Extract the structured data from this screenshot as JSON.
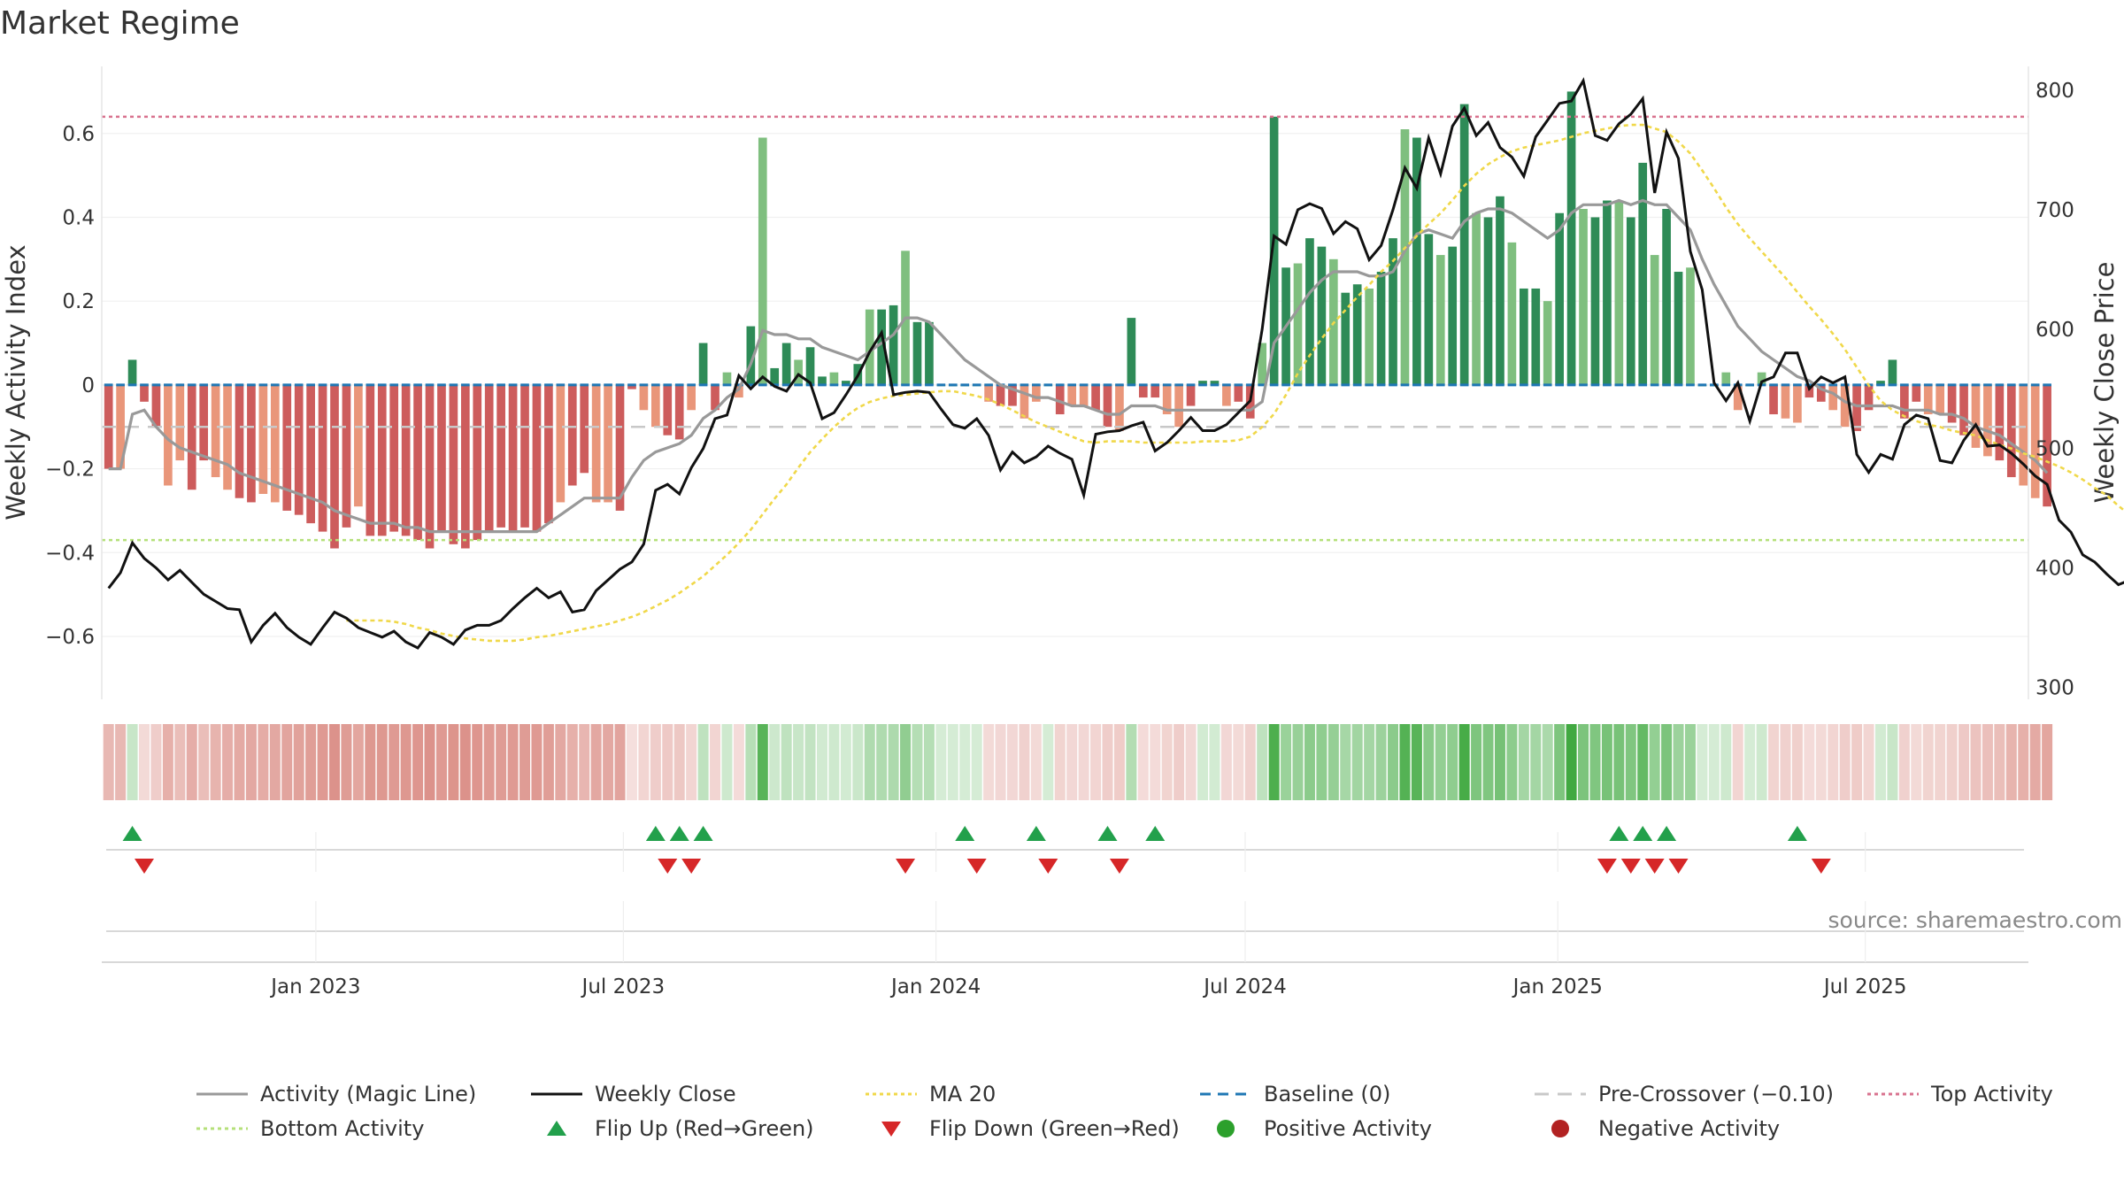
{
  "chart_data": {
    "type": "bar",
    "title": "Market Regime",
    "ylabel_left": "Weekly Activity Index",
    "ylabel_right": "Weekly Close Price",
    "left_axis": {
      "ylim": [
        -0.75,
        0.76
      ],
      "ticks": [
        0.6,
        0.4,
        0.2,
        0,
        -0.2,
        -0.4,
        -0.6
      ],
      "tick_labels": [
        "0.6",
        "0.4",
        "0.2",
        "0",
        "−0.2",
        "−0.4",
        "−0.6"
      ]
    },
    "right_axis": {
      "ylim": [
        290,
        820
      ],
      "ticks": [
        800,
        700,
        600,
        500,
        400,
        300
      ],
      "tick_labels": [
        "800",
        "700",
        "600",
        "500",
        "400",
        "300"
      ]
    },
    "x_range": [
      "2022-08-28",
      "2025-10-05"
    ],
    "x_ticks": [
      {
        "date": "2023-01-01",
        "label": "Jan 2023"
      },
      {
        "date": "2023-07-01",
        "label": "Jul 2023"
      },
      {
        "date": "2024-01-01",
        "label": "Jan 2024"
      },
      {
        "date": "2024-07-01",
        "label": "Jul 2024"
      },
      {
        "date": "2025-01-01",
        "label": "Jan 2025"
      },
      {
        "date": "2025-07-01",
        "label": "Jul 2025"
      }
    ],
    "start_week": "2022-09-01",
    "activity": [
      -0.2,
      -0.2,
      0.06,
      -0.04,
      -0.1,
      -0.24,
      -0.18,
      -0.25,
      -0.18,
      -0.22,
      -0.25,
      -0.27,
      -0.28,
      -0.26,
      -0.28,
      -0.3,
      -0.31,
      -0.33,
      -0.35,
      -0.39,
      -0.34,
      -0.29,
      -0.36,
      -0.36,
      -0.35,
      -0.36,
      -0.37,
      -0.39,
      -0.35,
      -0.38,
      -0.39,
      -0.37,
      -0.35,
      -0.34,
      -0.35,
      -0.34,
      -0.35,
      -0.33,
      -0.28,
      -0.24,
      -0.21,
      -0.28,
      -0.28,
      -0.3,
      -0.01,
      -0.06,
      -0.1,
      -0.12,
      -0.13,
      -0.06,
      0.1,
      -0.06,
      0.03,
      -0.03,
      0.14,
      0.59,
      0.04,
      0.1,
      0.06,
      0.09,
      0.02,
      0.03,
      0.01,
      0.05,
      0.18,
      0.18,
      0.19,
      0.32,
      0.15,
      0.15,
      0.0,
      0.0,
      0.0,
      0.0,
      -0.04,
      -0.05,
      -0.05,
      -0.08,
      -0.04,
      0.0,
      -0.07,
      -0.05,
      -0.05,
      -0.06,
      -0.1,
      -0.11,
      0.16,
      -0.03,
      -0.03,
      -0.07,
      -0.1,
      -0.05,
      0.01,
      0.01,
      -0.05,
      -0.04,
      -0.08,
      0.1,
      0.64,
      0.28,
      0.29,
      0.35,
      0.33,
      0.3,
      0.22,
      0.24,
      0.23,
      0.27,
      0.35,
      0.61,
      0.59,
      0.36,
      0.31,
      0.33,
      0.67,
      0.41,
      0.4,
      0.45,
      0.34,
      0.23,
      0.23,
      0.2,
      0.41,
      0.7,
      0.42,
      0.4,
      0.44,
      0.44,
      0.4,
      0.53,
      0.31,
      0.42,
      0.27,
      0.28,
      0.0,
      0.0,
      0.03,
      -0.06,
      0.0,
      0.03,
      -0.07,
      -0.08,
      -0.09,
      -0.03,
      -0.04,
      -0.06,
      -0.1,
      -0.11,
      -0.06,
      0.01,
      0.06,
      -0.08,
      -0.04,
      -0.07,
      -0.07,
      -0.09,
      -0.12,
      -0.15,
      -0.17,
      -0.18,
      -0.22,
      -0.24,
      -0.27,
      -0.29
    ],
    "close": [
      383,
      396,
      421,
      408,
      400,
      390,
      398,
      388,
      378,
      372,
      366,
      365,
      338,
      352,
      362,
      350,
      342,
      336,
      350,
      363,
      358,
      350,
      346,
      342,
      347,
      338,
      333,
      346,
      342,
      336,
      348,
      352,
      352,
      356,
      366,
      375,
      383,
      375,
      380,
      363,
      365,
      381,
      390,
      399,
      405,
      420,
      465,
      470,
      462,
      484,
      500,
      525,
      528,
      561,
      550,
      560,
      552,
      548,
      562,
      555,
      525,
      530,
      545,
      561,
      581,
      597,
      545,
      547,
      548,
      547,
      533,
      520,
      517,
      525,
      511,
      482,
      497,
      488,
      493,
      502,
      496,
      491,
      461,
      512,
      514,
      515,
      519,
      522,
      498,
      505,
      515,
      526,
      515,
      515,
      520,
      530,
      540,
      600,
      678,
      671,
      700,
      705,
      701,
      680,
      690,
      684,
      658,
      670,
      700,
      735,
      718,
      760,
      730,
      770,
      785,
      762,
      773,
      752,
      744,
      728,
      761,
      775,
      789,
      791,
      808,
      762,
      758,
      772,
      780,
      793,
      714,
      765,
      743,
      665,
      633,
      555,
      540,
      555,
      523,
      556,
      560,
      580,
      580,
      550,
      560,
      555,
      560,
      495,
      480,
      495,
      491,
      520,
      528,
      525,
      490,
      488,
      507,
      520,
      502,
      503,
      496,
      487,
      477,
      470,
      440,
      430,
      411,
      405,
      395,
      386,
      390,
      386
    ],
    "magic_line": [
      -0.2,
      -0.2,
      -0.07,
      -0.06,
      -0.1,
      -0.13,
      -0.15,
      -0.16,
      -0.17,
      -0.18,
      -0.19,
      -0.21,
      -0.22,
      -0.23,
      -0.24,
      -0.25,
      -0.26,
      -0.27,
      -0.28,
      -0.3,
      -0.31,
      -0.32,
      -0.33,
      -0.33,
      -0.33,
      -0.34,
      -0.34,
      -0.35,
      -0.35,
      -0.35,
      -0.35,
      -0.35,
      -0.35,
      -0.35,
      -0.35,
      -0.35,
      -0.35,
      -0.33,
      -0.31,
      -0.29,
      -0.27,
      -0.27,
      -0.27,
      -0.27,
      -0.22,
      -0.18,
      -0.16,
      -0.15,
      -0.14,
      -0.12,
      -0.08,
      -0.06,
      -0.03,
      -0.01,
      0.05,
      0.13,
      0.12,
      0.12,
      0.11,
      0.11,
      0.09,
      0.08,
      0.07,
      0.06,
      0.08,
      0.1,
      0.12,
      0.16,
      0.16,
      0.15,
      0.12,
      0.09,
      0.06,
      0.04,
      0.02,
      0.0,
      -0.01,
      -0.02,
      -0.03,
      -0.03,
      -0.04,
      -0.05,
      -0.05,
      -0.06,
      -0.07,
      -0.07,
      -0.05,
      -0.05,
      -0.05,
      -0.06,
      -0.06,
      -0.06,
      -0.06,
      -0.06,
      -0.06,
      -0.06,
      -0.06,
      -0.04,
      0.1,
      0.14,
      0.18,
      0.22,
      0.25,
      0.27,
      0.27,
      0.27,
      0.26,
      0.26,
      0.27,
      0.32,
      0.36,
      0.37,
      0.36,
      0.35,
      0.39,
      0.41,
      0.42,
      0.42,
      0.41,
      0.39,
      0.37,
      0.35,
      0.37,
      0.41,
      0.43,
      0.43,
      0.43,
      0.44,
      0.43,
      0.44,
      0.43,
      0.43,
      0.4,
      0.37,
      0.3,
      0.24,
      0.19,
      0.14,
      0.11,
      0.08,
      0.06,
      0.04,
      0.02,
      0.01,
      -0.01,
      -0.02,
      -0.04,
      -0.05,
      -0.05,
      -0.05,
      -0.05,
      -0.06,
      -0.06,
      -0.06,
      -0.07,
      -0.07,
      -0.08,
      -0.1,
      -0.11,
      -0.12,
      -0.14,
      -0.16,
      -0.18,
      -0.21
    ],
    "ma20": [
      null,
      null,
      null,
      null,
      null,
      null,
      null,
      null,
      null,
      null,
      null,
      null,
      null,
      null,
      null,
      null,
      null,
      null,
      null,
      null,
      356,
      356,
      356,
      356,
      355,
      353,
      350,
      348,
      345,
      343,
      341,
      340,
      339,
      339,
      339,
      340,
      342,
      343,
      345,
      347,
      349,
      351,
      353,
      356,
      359,
      363,
      368,
      373,
      379,
      386,
      393,
      402,
      411,
      421,
      432,
      445,
      458,
      470,
      484,
      497,
      508,
      518,
      527,
      534,
      539,
      542,
      544,
      545,
      546,
      547,
      548,
      548,
      546,
      544,
      541,
      537,
      532,
      527,
      522,
      518,
      514,
      510,
      506,
      505,
      506,
      506,
      506,
      505,
      505,
      505,
      505,
      505,
      506,
      506,
      506,
      507,
      510,
      518,
      529,
      545,
      563,
      578,
      592,
      605,
      616,
      627,
      637,
      648,
      657,
      668,
      678,
      688,
      697,
      708,
      720,
      730,
      738,
      744,
      749,
      752,
      754,
      756,
      758,
      761,
      764,
      766,
      768,
      770,
      771,
      771,
      768,
      765,
      757,
      747,
      733,
      718,
      702,
      688,
      676,
      665,
      654,
      643,
      631,
      619,
      608,
      596,
      583,
      568,
      553,
      540,
      532,
      527,
      523,
      520,
      518,
      515,
      513,
      511,
      507,
      503,
      500,
      496,
      493,
      489,
      485,
      480,
      474,
      467,
      461,
      452,
      444,
      436
    ],
    "flip_up_weeks": [
      2,
      46,
      48,
      50,
      72,
      78,
      84,
      88,
      127,
      129,
      131,
      142
    ],
    "flip_down_weeks": [
      3,
      47,
      49,
      67,
      73,
      79,
      85,
      126,
      128,
      130,
      132,
      144
    ],
    "baseline": 0,
    "pre_crossover": -0.1,
    "top_activity": 0.64,
    "bottom_activity": -0.37,
    "colors": {
      "strong_pos": "#2e8b57",
      "weak_pos": "#7fbf7f",
      "strong_neg": "#cd5c5c",
      "weak_neg": "#e9967a",
      "magic_line": "#999999",
      "close": "#111111",
      "ma20": "#f0d84a",
      "baseline": "#1f77b4",
      "pre_crossover": "#c8c8c8",
      "top_activity": "#d9738f",
      "bottom_activity": "#b5e07a",
      "flip_up": "#22a04b",
      "flip_down": "#d62728",
      "positive_activity": "#2ca02c",
      "negative_activity": "#b22222"
    },
    "legend_placement": "bottom-center",
    "legend": [
      {
        "label": "Activity (Magic Line)",
        "kind": "line",
        "color": "#999999",
        "dash": ""
      },
      {
        "label": "Weekly Close",
        "kind": "line",
        "color": "#111111",
        "dash": ""
      },
      {
        "label": "MA 20",
        "kind": "line",
        "color": "#f0d84a",
        "dash": "4,4"
      },
      {
        "label": "Baseline (0)",
        "kind": "line",
        "color": "#1f77b4",
        "dash": "12,8"
      },
      {
        "label": "Pre-Crossover (−0.10)",
        "kind": "line",
        "color": "#c8c8c8",
        "dash": "16,10"
      },
      {
        "label": "Top Activity",
        "kind": "line",
        "color": "#d9738f",
        "dash": "4,4"
      },
      {
        "label": "Bottom Activity",
        "kind": "line",
        "color": "#b5e07a",
        "dash": "4,4"
      },
      {
        "label": "Flip Up (Red→Green)",
        "kind": "triangle-up",
        "color": "#22a04b"
      },
      {
        "label": "Flip Down (Green→Red)",
        "kind": "triangle-down",
        "color": "#d62728"
      },
      {
        "label": "Positive Activity",
        "kind": "circle",
        "color": "#2ca02c"
      },
      {
        "label": "Negative Activity",
        "kind": "circle",
        "color": "#b22222"
      }
    ],
    "source": "source: sharemaestro.com"
  }
}
